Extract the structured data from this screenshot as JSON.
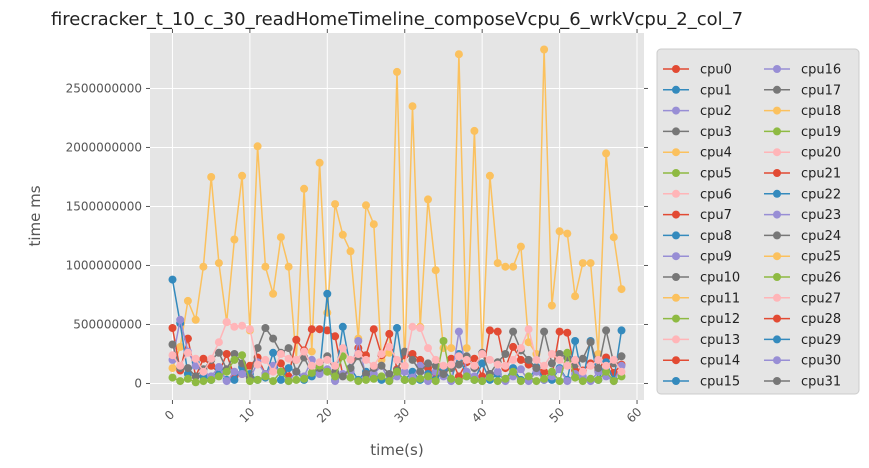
{
  "chart_data": {
    "type": "line",
    "title": "firecracker_t_10_c_30_readHomeTimeline_composeVcpu_6_wrkVcpu_2_col_7",
    "xlabel": "time(s)",
    "ylabel": "time ms",
    "xlim": [
      -2.9,
      60.9
    ],
    "ylim": [
      -140000000,
      2970000000
    ],
    "xticks": [
      0,
      10,
      20,
      30,
      40,
      50,
      60
    ],
    "xtick_labels": [
      "0",
      "10",
      "20",
      "30",
      "40",
      "50",
      "60"
    ],
    "yticks": [
      0,
      500000000,
      1000000000,
      1500000000,
      2000000000,
      2500000000
    ],
    "ytick_labels": [
      "0",
      "500000000",
      "1000000000",
      "1500000000",
      "2000000000",
      "2500000000"
    ],
    "grid": true,
    "legend_position": "right-outside",
    "x": [
      0,
      1,
      2,
      3,
      4,
      5,
      6,
      7,
      8,
      9,
      10,
      11,
      12,
      13,
      14,
      15,
      16,
      17,
      18,
      19,
      20,
      21,
      22,
      23,
      24,
      25,
      26,
      27,
      28,
      29,
      30,
      31,
      32,
      33,
      34,
      35,
      36,
      37,
      38,
      39,
      40,
      41,
      42,
      43,
      44,
      45,
      46,
      47,
      48,
      49,
      50,
      51,
      52,
      53,
      54,
      55,
      56,
      57,
      58
    ],
    "series": [
      {
        "name": "cpu0",
        "color": "#E24A33"
      },
      {
        "name": "cpu1",
        "color": "#348ABD"
      },
      {
        "name": "cpu2",
        "color": "#988ED5"
      },
      {
        "name": "cpu3",
        "color": "#777777"
      },
      {
        "name": "cpu4",
        "color": "#FBC15E"
      },
      {
        "name": "cpu5",
        "color": "#8EBA42"
      },
      {
        "name": "cpu6",
        "color": "#FFB5B8"
      },
      {
        "name": "cpu7",
        "color": "#E24A33"
      },
      {
        "name": "cpu8",
        "color": "#348ABD"
      },
      {
        "name": "cpu9",
        "color": "#988ED5"
      },
      {
        "name": "cpu10",
        "color": "#777777"
      },
      {
        "name": "cpu11",
        "color": "#FBC15E",
        "values": [
          130000000,
          310000000,
          700000000,
          540000000,
          990000000,
          1750000000,
          1020000000,
          520000000,
          1220000000,
          1760000000,
          450000000,
          2010000000,
          990000000,
          760000000,
          1240000000,
          990000000,
          200000000,
          1650000000,
          270000000,
          1870000000,
          600000000,
          1520000000,
          1260000000,
          1120000000,
          380000000,
          1510000000,
          1350000000,
          200000000,
          260000000,
          2640000000,
          150000000,
          2350000000,
          480000000,
          1560000000,
          960000000,
          300000000,
          300000000,
          2790000000,
          300000000,
          2140000000,
          250000000,
          1760000000,
          1020000000,
          990000000,
          990000000,
          1160000000,
          350000000,
          250000000,
          2830000000,
          660000000,
          1290000000,
          1270000000,
          740000000,
          1020000000,
          1020000000,
          250000000,
          1950000000,
          1240000000,
          800000000
        ]
      },
      {
        "name": "cpu12",
        "color": "#8EBA42"
      },
      {
        "name": "cpu13",
        "color": "#FFB5B8"
      },
      {
        "name": "cpu14",
        "color": "#E24A33"
      },
      {
        "name": "cpu15",
        "color": "#348ABD"
      },
      {
        "name": "cpu16",
        "color": "#988ED5"
      },
      {
        "name": "cpu17",
        "color": "#777777"
      },
      {
        "name": "cpu18",
        "color": "#FBC15E"
      },
      {
        "name": "cpu19",
        "color": "#8EBA42"
      },
      {
        "name": "cpu20",
        "color": "#FFB5B8"
      },
      {
        "name": "cpu21",
        "color": "#E24A33",
        "values": [
          470000000,
          110000000,
          380000000,
          60000000,
          210000000,
          150000000,
          90000000,
          250000000,
          60000000,
          80000000,
          150000000,
          220000000,
          80000000,
          140000000,
          170000000,
          60000000,
          370000000,
          280000000,
          460000000,
          460000000,
          450000000,
          400000000,
          70000000,
          100000000,
          300000000,
          240000000,
          460000000,
          240000000,
          420000000,
          120000000,
          240000000,
          250000000,
          200000000,
          130000000,
          70000000,
          100000000,
          210000000,
          60000000,
          180000000,
          210000000,
          60000000,
          450000000,
          440000000,
          130000000,
          310000000,
          200000000,
          160000000,
          130000000,
          100000000,
          60000000,
          440000000,
          430000000,
          110000000,
          110000000,
          170000000,
          110000000,
          220000000,
          90000000,
          160000000
        ]
      },
      {
        "name": "cpu22",
        "color": "#348ABD",
        "values": [
          880000000,
          510000000,
          80000000,
          180000000,
          60000000,
          30000000,
          120000000,
          30000000,
          30000000,
          140000000,
          80000000,
          30000000,
          50000000,
          260000000,
          30000000,
          130000000,
          100000000,
          30000000,
          60000000,
          100000000,
          760000000,
          30000000,
          480000000,
          130000000,
          30000000,
          100000000,
          60000000,
          30000000,
          30000000,
          470000000,
          30000000,
          100000000,
          30000000,
          80000000,
          30000000,
          120000000,
          30000000,
          250000000,
          60000000,
          30000000,
          170000000,
          30000000,
          80000000,
          30000000,
          130000000,
          30000000,
          30000000,
          140000000,
          30000000,
          30000000,
          130000000,
          30000000,
          360000000,
          30000000,
          360000000,
          30000000,
          180000000,
          30000000,
          450000000
        ]
      },
      {
        "name": "cpu23",
        "color": "#988ED5",
        "values": [
          200000000,
          540000000,
          270000000,
          150000000,
          100000000,
          60000000,
          140000000,
          20000000,
          100000000,
          80000000,
          40000000,
          180000000,
          80000000,
          150000000,
          100000000,
          20000000,
          100000000,
          60000000,
          200000000,
          80000000,
          120000000,
          20000000,
          80000000,
          100000000,
          360000000,
          50000000,
          80000000,
          150000000,
          20000000,
          60000000,
          100000000,
          50000000,
          150000000,
          20000000,
          100000000,
          60000000,
          20000000,
          440000000,
          100000000,
          60000000,
          20000000,
          80000000,
          100000000,
          20000000,
          60000000,
          120000000,
          20000000,
          100000000,
          30000000,
          60000000,
          120000000,
          20000000,
          80000000,
          60000000,
          20000000,
          100000000,
          60000000,
          20000000,
          150000000
        ]
      },
      {
        "name": "cpu24",
        "color": "#777777",
        "values": [
          330000000,
          130000000,
          130000000,
          60000000,
          120000000,
          200000000,
          260000000,
          120000000,
          250000000,
          170000000,
          50000000,
          300000000,
          470000000,
          380000000,
          260000000,
          300000000,
          100000000,
          220000000,
          90000000,
          130000000,
          230000000,
          100000000,
          60000000,
          130000000,
          230000000,
          80000000,
          130000000,
          150000000,
          80000000,
          110000000,
          270000000,
          200000000,
          100000000,
          170000000,
          150000000,
          80000000,
          130000000,
          160000000,
          230000000,
          130000000,
          260000000,
          80000000,
          180000000,
          250000000,
          440000000,
          280000000,
          200000000,
          130000000,
          440000000,
          170000000,
          250000000,
          220000000,
          160000000,
          210000000,
          350000000,
          130000000,
          450000000,
          170000000,
          230000000
        ]
      },
      {
        "name": "cpu25",
        "color": "#FBC15E"
      },
      {
        "name": "cpu26",
        "color": "#8EBA42",
        "values": [
          50000000,
          20000000,
          40000000,
          10000000,
          20000000,
          30000000,
          60000000,
          100000000,
          200000000,
          240000000,
          20000000,
          30000000,
          60000000,
          20000000,
          100000000,
          20000000,
          30000000,
          40000000,
          90000000,
          150000000,
          100000000,
          60000000,
          230000000,
          50000000,
          20000000,
          30000000,
          40000000,
          60000000,
          20000000,
          100000000,
          30000000,
          20000000,
          40000000,
          60000000,
          20000000,
          360000000,
          40000000,
          20000000,
          60000000,
          30000000,
          20000000,
          50000000,
          20000000,
          40000000,
          100000000,
          20000000,
          60000000,
          20000000,
          40000000,
          100000000,
          20000000,
          260000000,
          50000000,
          20000000,
          40000000,
          30000000,
          100000000,
          20000000,
          60000000
        ]
      },
      {
        "name": "cpu27",
        "color": "#FFB5B8",
        "values": [
          240000000,
          150000000,
          260000000,
          210000000,
          100000000,
          210000000,
          350000000,
          520000000,
          480000000,
          490000000,
          460000000,
          160000000,
          200000000,
          100000000,
          250000000,
          210000000,
          200000000,
          270000000,
          150000000,
          180000000,
          200000000,
          150000000,
          300000000,
          200000000,
          250000000,
          200000000,
          150000000,
          250000000,
          310000000,
          200000000,
          150000000,
          480000000,
          470000000,
          300000000,
          200000000,
          150000000,
          160000000,
          230000000,
          200000000,
          150000000,
          250000000,
          200000000,
          160000000,
          150000000,
          200000000,
          300000000,
          460000000,
          200000000,
          150000000,
          250000000,
          200000000,
          150000000,
          200000000,
          100000000,
          150000000,
          200000000,
          150000000,
          200000000,
          100000000
        ]
      },
      {
        "name": "cpu28",
        "color": "#E24A33"
      },
      {
        "name": "cpu29",
        "color": "#348ABD"
      },
      {
        "name": "cpu30",
        "color": "#988ED5"
      },
      {
        "name": "cpu31",
        "color": "#777777"
      }
    ]
  }
}
